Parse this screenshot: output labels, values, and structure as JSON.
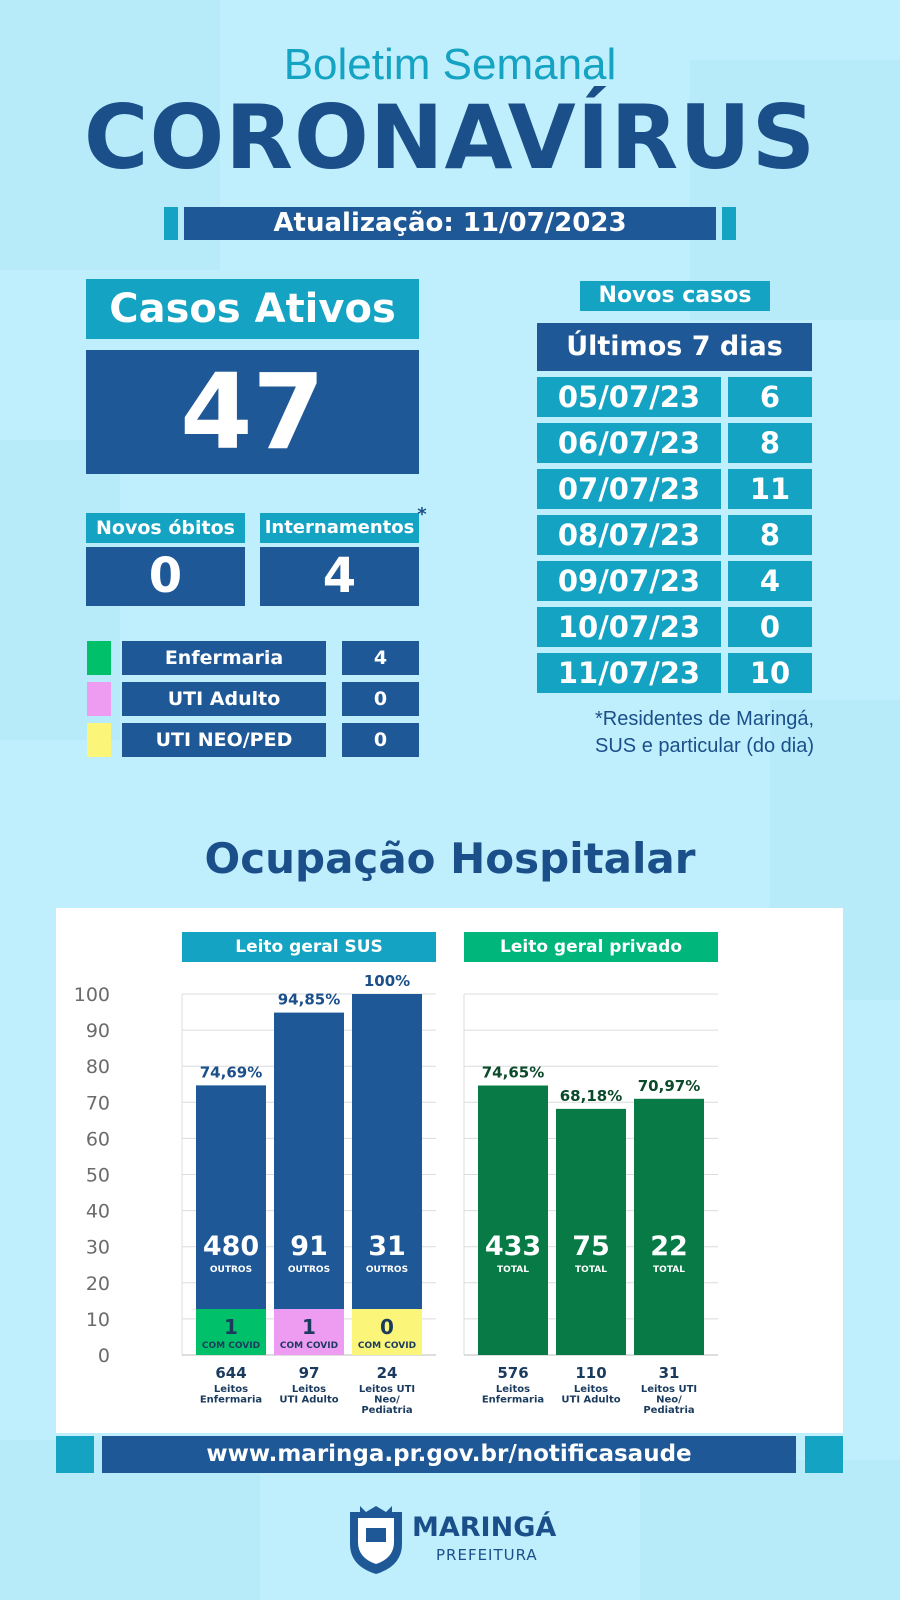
{
  "header": {
    "subtitle": "Boletim Semanal",
    "title": "CORONAVÍRUS",
    "update": "Atualização: 11/07/2023"
  },
  "active_cases": {
    "label": "Casos Ativos",
    "value": "47"
  },
  "deaths": {
    "label": "Novos óbitos",
    "value": "0"
  },
  "hospitalizations": {
    "label": "Internamentos",
    "asterisk": "*",
    "value": "4"
  },
  "breakdown": [
    {
      "label": "Enfermaria",
      "value": "4",
      "color": "#00c06a"
    },
    {
      "label": "UTI Adulto",
      "value": "0",
      "color": "#ee9cf2"
    },
    {
      "label": "UTI NEO/PED",
      "value": "0",
      "color": "#fbf57a"
    }
  ],
  "new_cases": {
    "tag": "Novos casos",
    "header": "Últimos 7 dias",
    "rows": [
      {
        "date": "05/07/23",
        "value": "6"
      },
      {
        "date": "06/07/23",
        "value": "8"
      },
      {
        "date": "07/07/23",
        "value": "11"
      },
      {
        "date": "08/07/23",
        "value": "8"
      },
      {
        "date": "09/07/23",
        "value": "4"
      },
      {
        "date": "10/07/23",
        "value": "0"
      },
      {
        "date": "11/07/23",
        "value": "10"
      }
    ],
    "note_line1": "*Residentes de Maringá,",
    "note_line2": "SUS e particular (do dia)"
  },
  "section_title": "Ocupação Hospitalar",
  "chart_data": [
    {
      "type": "bar",
      "title": "Leito geral SUS",
      "ylim": [
        0,
        100
      ],
      "y_ticks": [
        "0",
        "10",
        "20",
        "30",
        "40",
        "50",
        "60",
        "70",
        "80",
        "90",
        "100"
      ],
      "bar_color": "#1f5896",
      "categories": [
        {
          "total": "644",
          "label_lines": [
            "Leitos",
            "Enfermaria"
          ]
        },
        {
          "total": "97",
          "label_lines": [
            "Leitos",
            "UTI Adulto"
          ]
        },
        {
          "total": "24",
          "label_lines": [
            "Leitos UTI",
            "Neo/",
            "Pediatria"
          ]
        }
      ],
      "values": [
        74.69,
        94.85,
        100
      ],
      "value_labels": [
        "74,69%",
        "94,85%",
        "100%"
      ],
      "others": [
        "480",
        "91",
        "31"
      ],
      "others_label": "OUTROS",
      "covid": [
        "1",
        "1",
        "0"
      ],
      "covid_label": "COM COVID",
      "covid_colors": [
        "#00c06a",
        "#ee9cf2",
        "#fbf57a"
      ]
    },
    {
      "type": "bar",
      "title": "Leito geral privado",
      "ylim": [
        0,
        100
      ],
      "bar_color": "#077a45",
      "categories": [
        {
          "total": "576",
          "label_lines": [
            "Leitos",
            "Enfermaria"
          ]
        },
        {
          "total": "110",
          "label_lines": [
            "Leitos",
            "UTI Adulto"
          ]
        },
        {
          "total": "31",
          "label_lines": [
            "Leitos UTI",
            "Neo/",
            "Pediatria"
          ]
        }
      ],
      "values": [
        74.65,
        68.18,
        70.97
      ],
      "value_labels": [
        "74,65%",
        "68,18%",
        "70,97%"
      ],
      "others": [
        "433",
        "75",
        "22"
      ],
      "others_label": "TOTAL"
    }
  ],
  "footer": {
    "url": "www.maringa.pr.gov.br/notificasaude"
  },
  "logo": {
    "name": "MARINGÁ",
    "sub": "PREFEITURA"
  }
}
